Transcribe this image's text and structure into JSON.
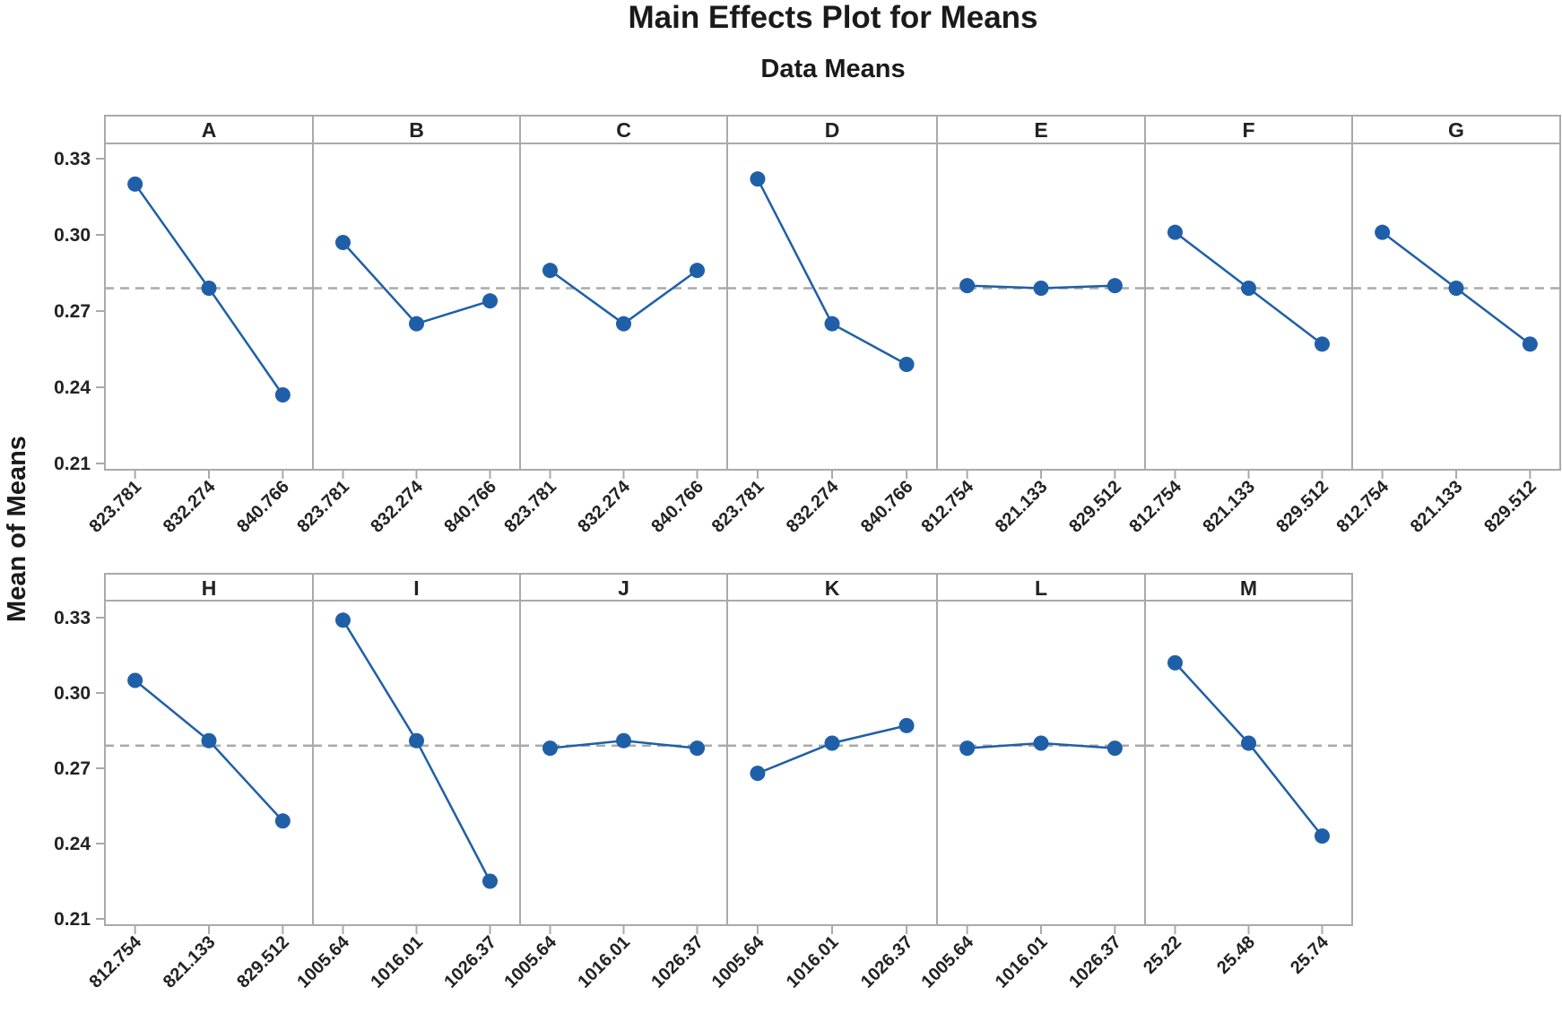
{
  "chart_data": {
    "type": "line",
    "title": "Main Effects Plot for Means",
    "subtitle": "Data Means",
    "ylabel": "Mean of Means",
    "ylim": [
      0.21,
      0.33
    ],
    "yticks": [
      "0.21",
      "0.24",
      "0.27",
      "0.30",
      "0.33"
    ],
    "mean_reference": 0.279,
    "grid": false,
    "panels": [
      {
        "factor": "A",
        "levels": [
          "823.781",
          "832.274",
          "840.766"
        ],
        "values": [
          0.32,
          0.279,
          0.237
        ]
      },
      {
        "factor": "B",
        "levels": [
          "823.781",
          "832.274",
          "840.766"
        ],
        "values": [
          0.297,
          0.265,
          0.274
        ]
      },
      {
        "factor": "C",
        "levels": [
          "823.781",
          "832.274",
          "840.766"
        ],
        "values": [
          0.286,
          0.265,
          0.286
        ]
      },
      {
        "factor": "D",
        "levels": [
          "823.781",
          "832.274",
          "840.766"
        ],
        "values": [
          0.322,
          0.265,
          0.249
        ]
      },
      {
        "factor": "E",
        "levels": [
          "812.754",
          "821.133",
          "829.512"
        ],
        "values": [
          0.28,
          0.279,
          0.28
        ]
      },
      {
        "factor": "F",
        "levels": [
          "812.754",
          "821.133",
          "829.512"
        ],
        "values": [
          0.301,
          0.279,
          0.257
        ]
      },
      {
        "factor": "G",
        "levels": [
          "812.754",
          "821.133",
          "829.512"
        ],
        "values": [
          0.301,
          0.279,
          0.257
        ]
      },
      {
        "factor": "H",
        "levels": [
          "812.754",
          "821.133",
          "829.512"
        ],
        "values": [
          0.305,
          0.281,
          0.249
        ]
      },
      {
        "factor": "I",
        "levels": [
          "1005.64",
          "1016.01",
          "1026.37"
        ],
        "values": [
          0.329,
          0.281,
          0.225
        ]
      },
      {
        "factor": "J",
        "levels": [
          "1005.64",
          "1016.01",
          "1026.37"
        ],
        "values": [
          0.278,
          0.281,
          0.278
        ]
      },
      {
        "factor": "K",
        "levels": [
          "1005.64",
          "1016.01",
          "1026.37"
        ],
        "values": [
          0.268,
          0.28,
          0.287
        ]
      },
      {
        "factor": "L",
        "levels": [
          "1005.64",
          "1016.01",
          "1026.37"
        ],
        "values": [
          0.278,
          0.28,
          0.278
        ]
      },
      {
        "factor": "M",
        "levels": [
          "25.22",
          "25.48",
          "25.74"
        ],
        "values": [
          0.312,
          0.28,
          0.243
        ]
      }
    ]
  },
  "colors": {
    "series": "#1f5fa8",
    "reference_line": "#aaaaaa",
    "panel_border": "#aaaaaa",
    "text": "#222222"
  }
}
